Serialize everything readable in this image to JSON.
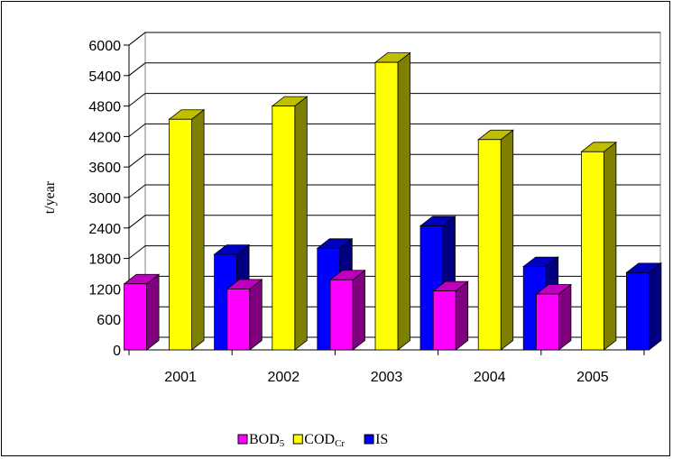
{
  "chart_data": {
    "type": "bar",
    "categories": [
      "2001",
      "2002",
      "2003",
      "2004",
      "2005"
    ],
    "series": [
      {
        "name": "BOD",
        "name_sub": "5",
        "color": "#ff00ff",
        "values": [
          1300,
          1200,
          1380,
          1160,
          1100
        ]
      },
      {
        "name": "COD",
        "name_sub": "Cr",
        "color": "#ffff00",
        "values": [
          4540,
          4800,
          5660,
          4140,
          3900
        ]
      },
      {
        "name": "IS",
        "name_sub": "",
        "color": "#0000ff",
        "values": [
          1880,
          2000,
          2440,
          1640,
          1520
        ]
      }
    ],
    "title": "",
    "xlabel": "",
    "ylabel": "t/year",
    "ylim": [
      0,
      6000
    ],
    "yticks": [
      0,
      600,
      1200,
      1800,
      2400,
      3000,
      3600,
      4200,
      4800,
      5400,
      6000
    ],
    "grid": true,
    "legend_position": "bottom"
  }
}
